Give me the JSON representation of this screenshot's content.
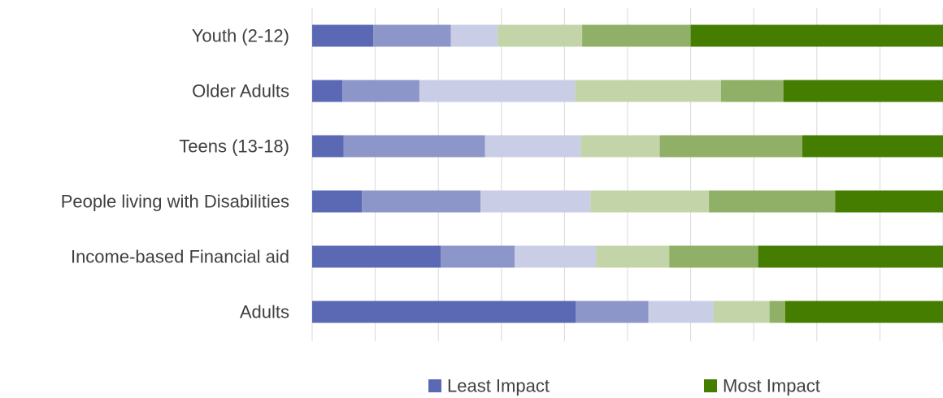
{
  "chart_data": {
    "type": "bar",
    "orientation": "horizontal",
    "stacked": "percent",
    "title": "",
    "xlabel": "",
    "ylabel": "",
    "xlim": [
      0,
      100
    ],
    "grid": true,
    "legend_position": "bottom",
    "categories": [
      "Youth (2-12)",
      "Older Adults",
      "Teens (13-18)",
      "People living with Disabilities",
      "Income-based Financial aid",
      "Adults"
    ],
    "series": [
      {
        "name": "Least Impact",
        "color": "#5B68B3",
        "values": [
          9.7,
          4.8,
          5.0,
          7.9,
          20.4,
          41.8
        ]
      },
      {
        "name": "",
        "color": "#8C96C9",
        "values": [
          12.3,
          12.2,
          22.4,
          18.8,
          11.7,
          11.5
        ]
      },
      {
        "name": "",
        "color": "#C9CDE6",
        "values": [
          7.4,
          24.7,
          15.2,
          17.4,
          12.9,
          10.3
        ]
      },
      {
        "name": "",
        "color": "#C3D5A8",
        "values": [
          13.4,
          23.1,
          12.5,
          18.8,
          11.6,
          8.9
        ]
      },
      {
        "name": "",
        "color": "#8FB066",
        "values": [
          17.2,
          9.9,
          22.6,
          20.0,
          14.1,
          2.5
        ]
      },
      {
        "name": "Most Impact",
        "color": "#457D00",
        "values": [
          40.0,
          25.3,
          22.3,
          17.1,
          29.3,
          25.0
        ]
      }
    ]
  }
}
